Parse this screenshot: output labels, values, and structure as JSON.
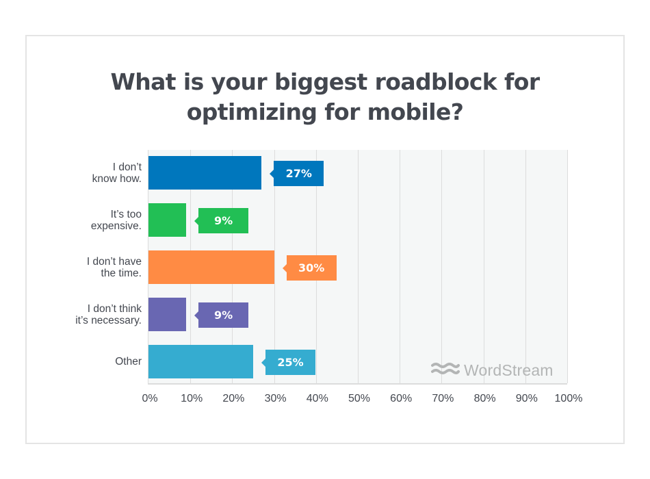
{
  "chart_data": {
    "type": "bar",
    "orientation": "horizontal",
    "title": "What is your biggest roadblock for optimizing for mobile?",
    "categories": [
      "I don’t know how.",
      "It’s too expensive.",
      "I don’t have the time.",
      "I don’t think it’s necessary.",
      "Other"
    ],
    "values": [
      27,
      9,
      30,
      9,
      25
    ],
    "value_labels": [
      "27%",
      "9%",
      "30%",
      "9%",
      "25%"
    ],
    "colors": [
      "#0077bd",
      "#22bf55",
      "#ff8b44",
      "#6967b2",
      "#35acd0"
    ],
    "xlabel": "",
    "ylabel": "",
    "xlim": [
      0,
      100
    ],
    "x_ticks": [
      "0%",
      "10%",
      "20%",
      "30%",
      "40%",
      "50%",
      "60%",
      "70%",
      "80%",
      "90%",
      "100%"
    ],
    "grid": true,
    "legend": null,
    "watermark": "WordStream"
  },
  "title": {
    "line1": "What is your biggest roadblock for",
    "line2": "optimizing for mobile?"
  },
  "categories": [
    {
      "line1": "I don’t",
      "line2": "know how.",
      "value": "27%",
      "color": "#0077bd"
    },
    {
      "line1": "It’s too",
      "line2": "expensive.",
      "value": "9%",
      "color": "#22bf55"
    },
    {
      "line1": "I don’t have",
      "line2": "the time.",
      "value": "30%",
      "color": "#ff8b44"
    },
    {
      "line1": "I don’t think",
      "line2": "it’s necessary.",
      "value": "9%",
      "color": "#6967b2"
    },
    {
      "line1": "Other",
      "line2": "",
      "value": "25%",
      "color": "#35acd0"
    }
  ],
  "axis": {
    "ticks": [
      "0%",
      "10%",
      "20%",
      "30%",
      "40%",
      "50%",
      "60%",
      "70%",
      "80%",
      "90%",
      "100%"
    ]
  },
  "logo": {
    "icon": "wave-icon",
    "text": "WordStream"
  }
}
